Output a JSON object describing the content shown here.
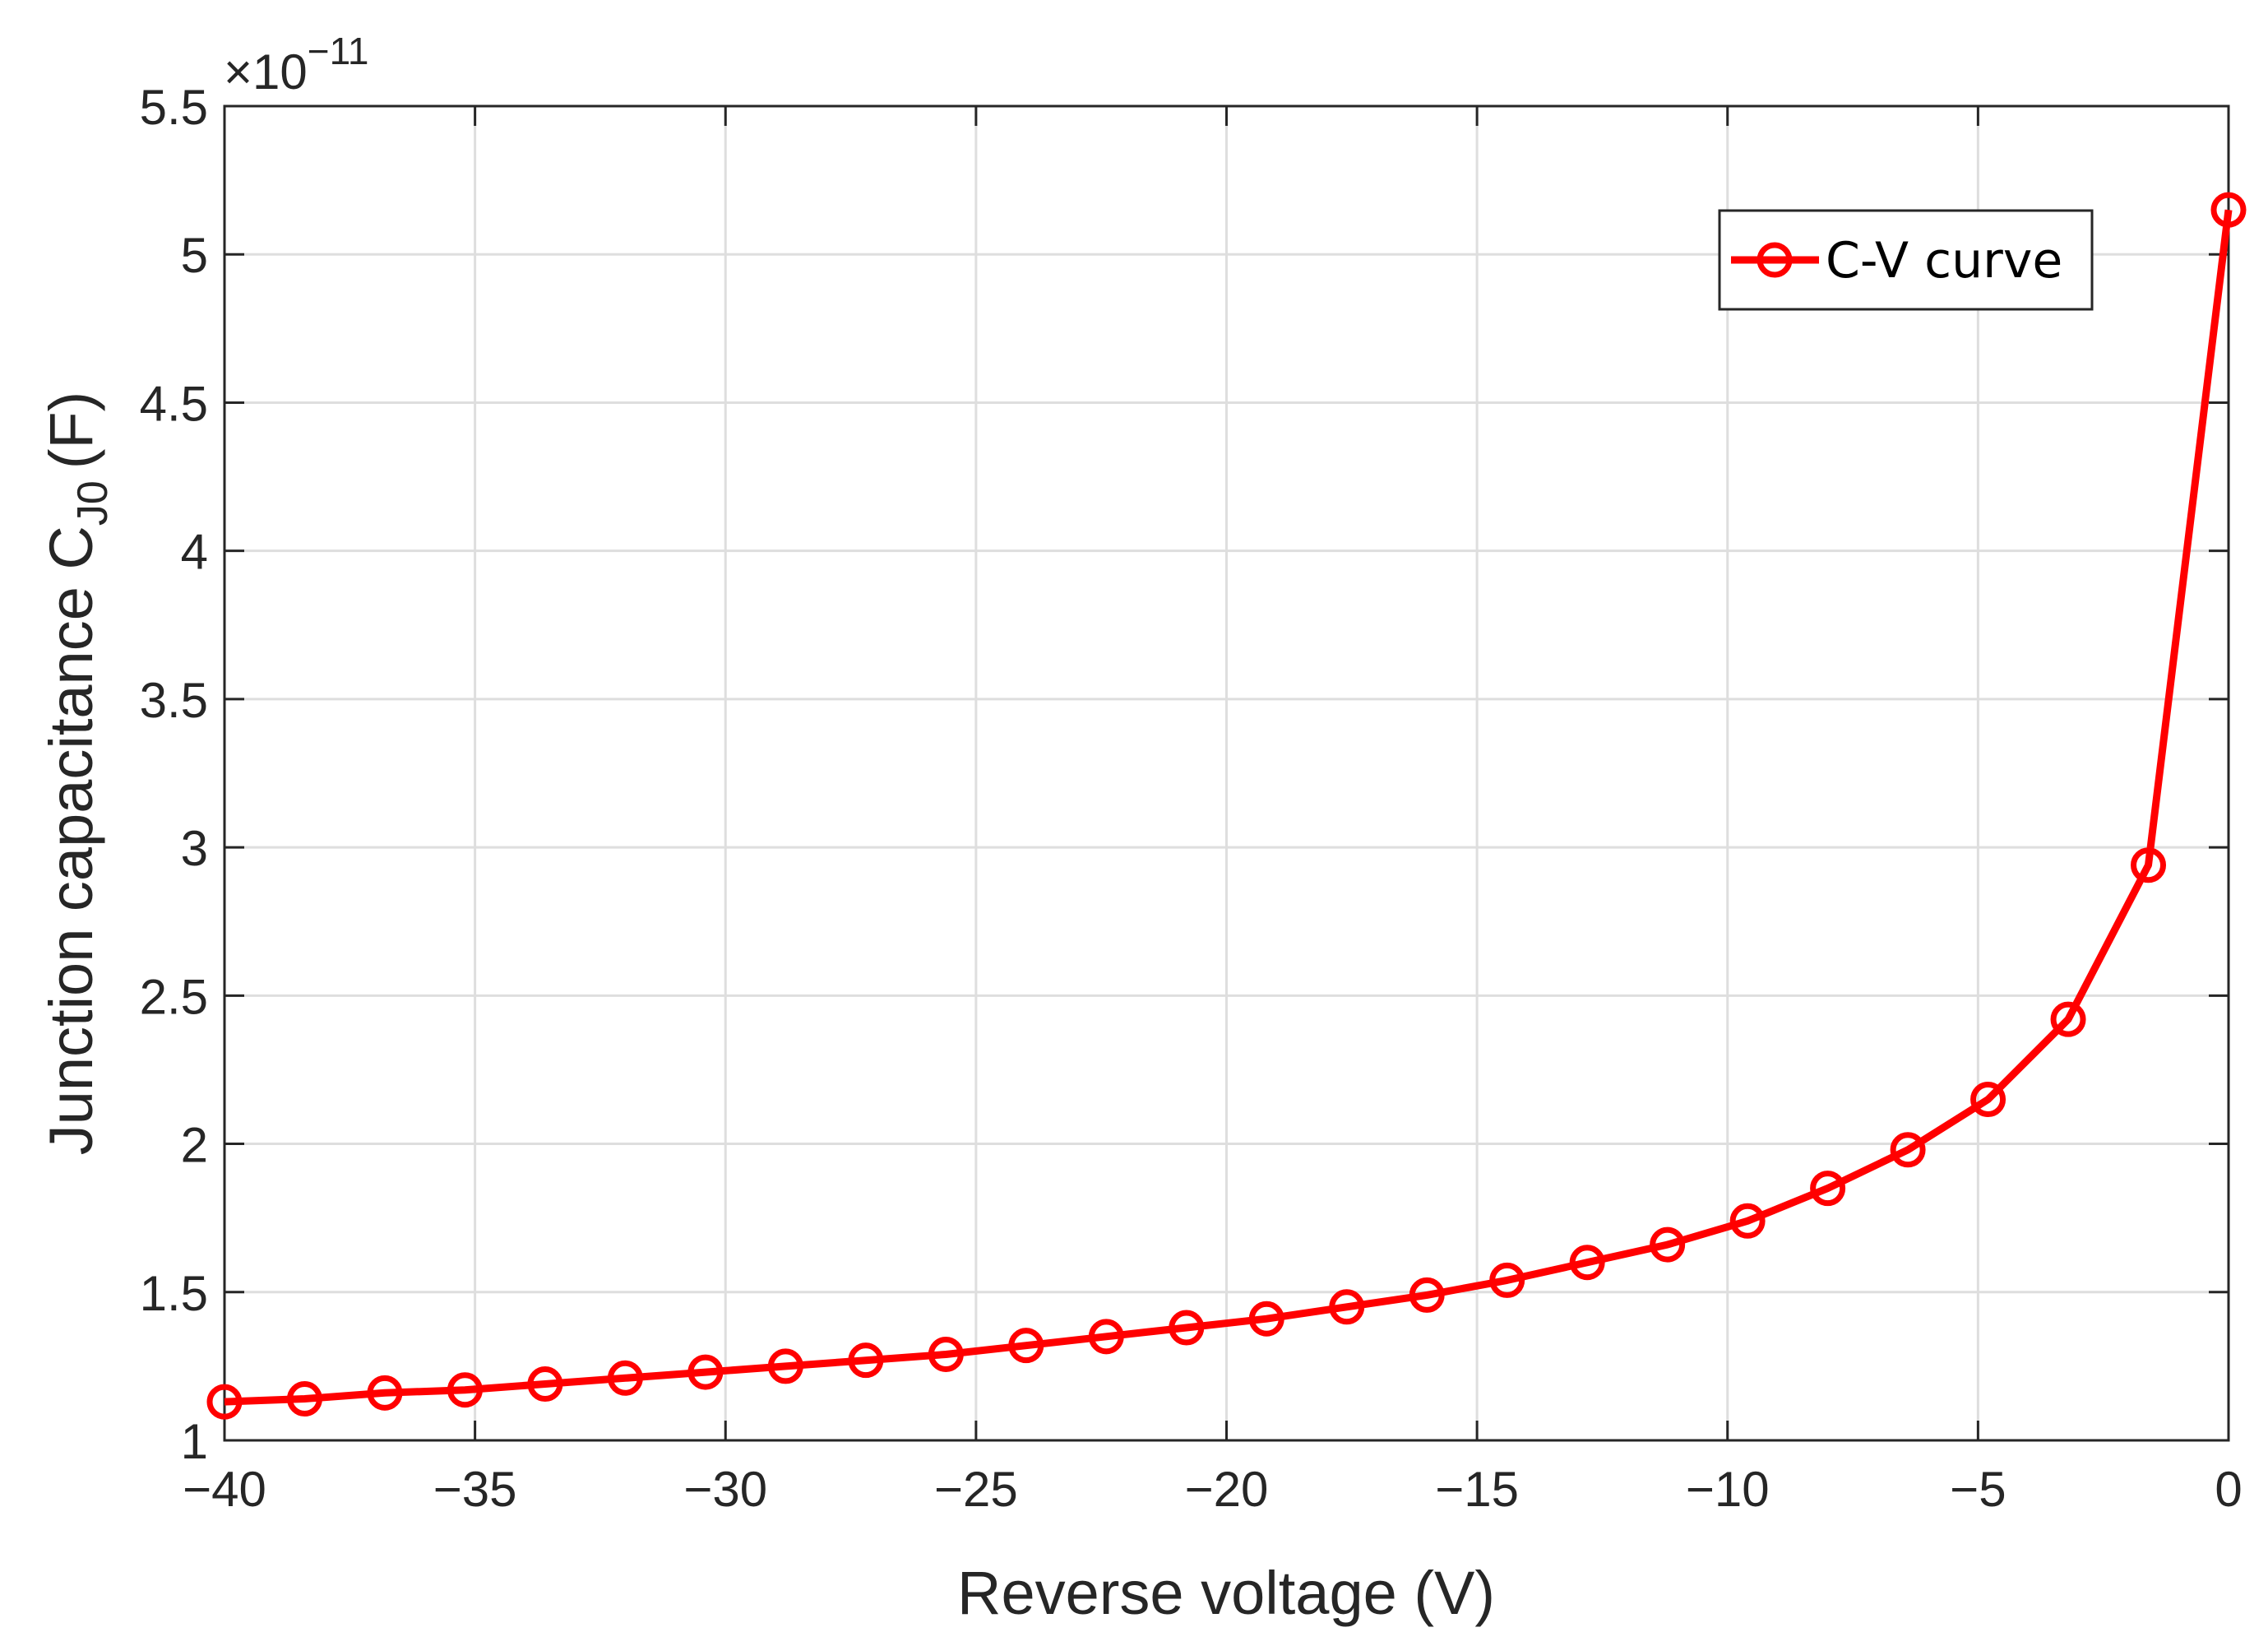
{
  "colors": {
    "series": "#ff0000",
    "grid": "#dedede",
    "axis": "#262626",
    "background": "#ffffff"
  },
  "chart_data": {
    "type": "line",
    "title": "",
    "xlabel": "Reverse voltage (V)",
    "ylabel_main": "Junction capacitance C",
    "ylabel_subscript": "J0",
    "ylabel_unit": "(F)",
    "y_exponent_base": "×10",
    "y_exponent_power": "−11",
    "xlim": [
      -40,
      0
    ],
    "ylim": [
      1,
      5.5
    ],
    "xticks": [
      -40,
      -35,
      -30,
      -25,
      -20,
      -15,
      -10,
      -5,
      0
    ],
    "xtick_labels": [
      "−40",
      "−35",
      "−30",
      "−25",
      "−20",
      "−15",
      "−10",
      "−5",
      "0"
    ],
    "yticks": [
      1,
      1.5,
      2,
      2.5,
      3,
      3.5,
      4,
      4.5,
      5,
      5.5
    ],
    "ytick_labels": [
      "1",
      "1.5",
      "2",
      "2.5",
      "3",
      "3.5",
      "4",
      "4.5",
      "5",
      "5.5"
    ],
    "grid": true,
    "legend_position": "top-right",
    "series": [
      {
        "name": "C-V curve",
        "marker": "circle",
        "x": [
          -40,
          -38.4,
          -36.8,
          -35.2,
          -33.6,
          -32,
          -30.4,
          -28.8,
          -27.2,
          -25.6,
          -24,
          -22.4,
          -20.8,
          -19.2,
          -17.6,
          -16,
          -14.4,
          -12.8,
          -11.2,
          -9.6,
          -8,
          -6.4,
          -4.8,
          -3.2,
          -1.6,
          0
        ],
        "values": [
          1.13,
          1.14,
          1.16,
          1.17,
          1.19,
          1.21,
          1.23,
          1.25,
          1.27,
          1.29,
          1.32,
          1.35,
          1.38,
          1.41,
          1.45,
          1.49,
          1.54,
          1.6,
          1.66,
          1.74,
          1.85,
          1.98,
          2.15,
          2.42,
          2.94,
          5.15
        ]
      }
    ]
  }
}
